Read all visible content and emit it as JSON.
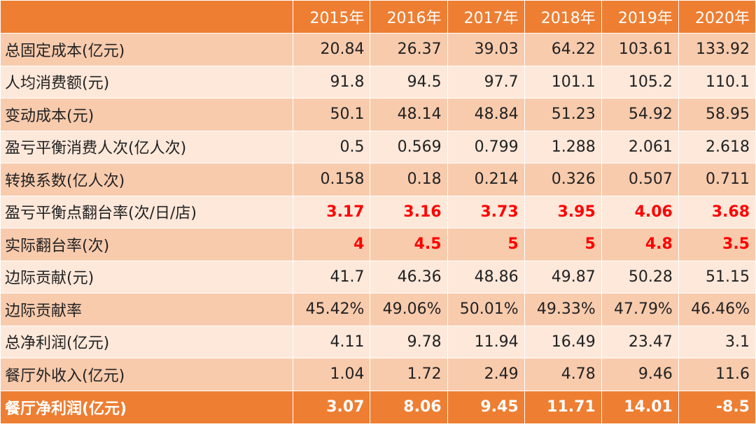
{
  "header": {
    "corner": "",
    "years": [
      "2015年",
      "2016年",
      "2017年",
      "2018年",
      "2019年",
      "2020年"
    ]
  },
  "rows": [
    {
      "label": "总固定成本(亿元)",
      "values": [
        "20.84",
        "26.37",
        "39.03",
        "64.22",
        "103.61",
        "133.92"
      ]
    },
    {
      "label": "人均消费额(元)",
      "values": [
        "91.8",
        "94.5",
        "97.7",
        "101.1",
        "105.2",
        "110.1"
      ]
    },
    {
      "label": "变动成本(元)",
      "values": [
        "50.1",
        "48.14",
        "48.84",
        "51.23",
        "54.92",
        "58.95"
      ]
    },
    {
      "label": "盈亏平衡消费人次(亿人次)",
      "values": [
        "0.5",
        "0.569",
        "0.799",
        "1.288",
        "2.061",
        "2.618"
      ]
    },
    {
      "label": "转换系数(亿人次)",
      "values": [
        "0.158",
        "0.18",
        "0.214",
        "0.326",
        "0.507",
        "0.711"
      ]
    },
    {
      "label": "盈亏平衡点翻台率(次/日/店)",
      "values": [
        "3.17",
        "3.16",
        "3.73",
        "3.95",
        "4.06",
        "3.68"
      ]
    },
    {
      "label": "实际翻台率(次)",
      "values": [
        "4",
        "4.5",
        "5",
        "5",
        "4.8",
        "3.5"
      ]
    },
    {
      "label": "边际贡献(元)",
      "values": [
        "41.7",
        "46.36",
        "48.86",
        "49.87",
        "50.28",
        "51.15"
      ]
    },
    {
      "label": "边际贡献率",
      "values": [
        "45.42%",
        "49.06%",
        "50.01%",
        "49.33%",
        "47.79%",
        "46.46%"
      ]
    },
    {
      "label": "总净利润(亿元)",
      "values": [
        "4.11",
        "9.78",
        "11.94",
        "16.49",
        "23.47",
        "3.1"
      ]
    },
    {
      "label": "餐厅外收入(亿元)",
      "values": [
        "1.04",
        "1.72",
        "2.49",
        "4.78",
        "9.46",
        "11.6"
      ]
    }
  ],
  "footer": {
    "label": "餐厅净利润(亿元)",
    "values": [
      "3.07",
      "8.06",
      "9.45",
      "11.71",
      "14.01",
      "-8.5"
    ]
  },
  "colors": {
    "header_bg": "#ee7e32",
    "row_dark": "#f8cbad",
    "row_light": "#fde8da",
    "highlight_text": "#ff0000"
  }
}
